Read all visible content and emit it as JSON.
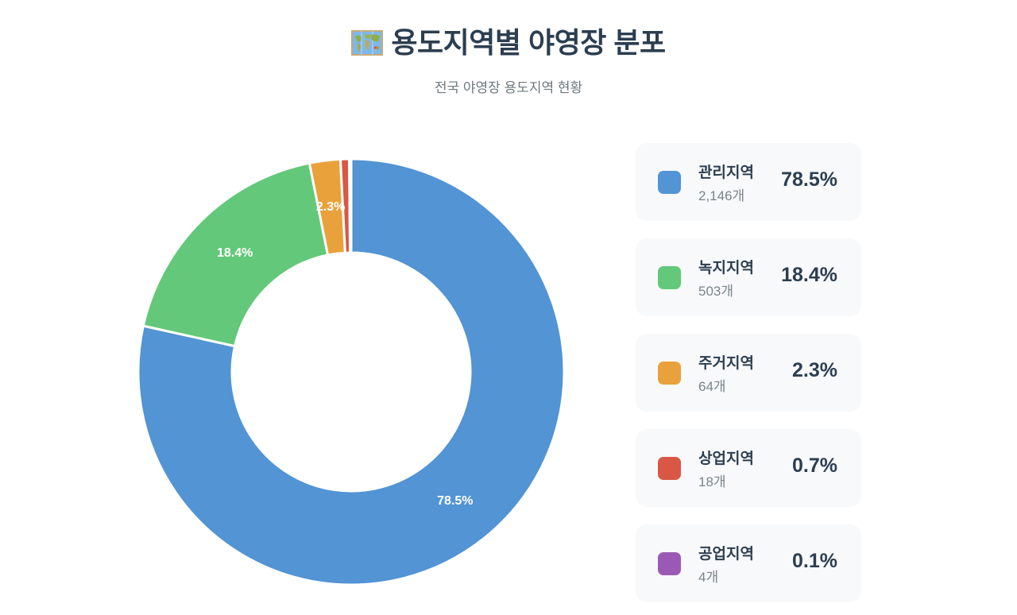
{
  "header": {
    "icon": "world-map-icon",
    "title": "용도지역별 야영장 분포",
    "subtitle": "전국 야영장 용도지역 현황"
  },
  "legend": [
    {
      "name": "관리지역",
      "count": "2,146개",
      "percent": "78.5%",
      "color": "#5294d4"
    },
    {
      "name": "녹지지역",
      "count": "503개",
      "percent": "18.4%",
      "color": "#63c87a"
    },
    {
      "name": "주거지역",
      "count": "64개",
      "percent": "2.3%",
      "color": "#e9a23b"
    },
    {
      "name": "상업지역",
      "count": "18개",
      "percent": "0.7%",
      "color": "#d95745"
    },
    {
      "name": "공업지역",
      "count": "4개",
      "percent": "0.1%",
      "color": "#9b59b6"
    }
  ],
  "slice_labels": {
    "s0": "78.5%",
    "s1": "18.4%",
    "s2": "2.3%"
  },
  "chart_data": {
    "type": "pie",
    "subtype": "donut",
    "title": "용도지역별 야영장 분포",
    "subtitle": "전국 야영장 용도지역 현황",
    "categories": [
      "관리지역",
      "녹지지역",
      "주거지역",
      "상업지역",
      "공업지역"
    ],
    "values": [
      2146,
      503,
      64,
      18,
      4
    ],
    "percentages": [
      78.5,
      18.4,
      2.3,
      0.7,
      0.1
    ],
    "colors": [
      "#5294d4",
      "#63c87a",
      "#e9a23b",
      "#d95745",
      "#9b59b6"
    ],
    "data_labels": [
      "78.5%",
      "18.4%",
      "2.3%",
      "",
      ""
    ],
    "start_angle": "top, clockwise",
    "legend_position": "right"
  }
}
